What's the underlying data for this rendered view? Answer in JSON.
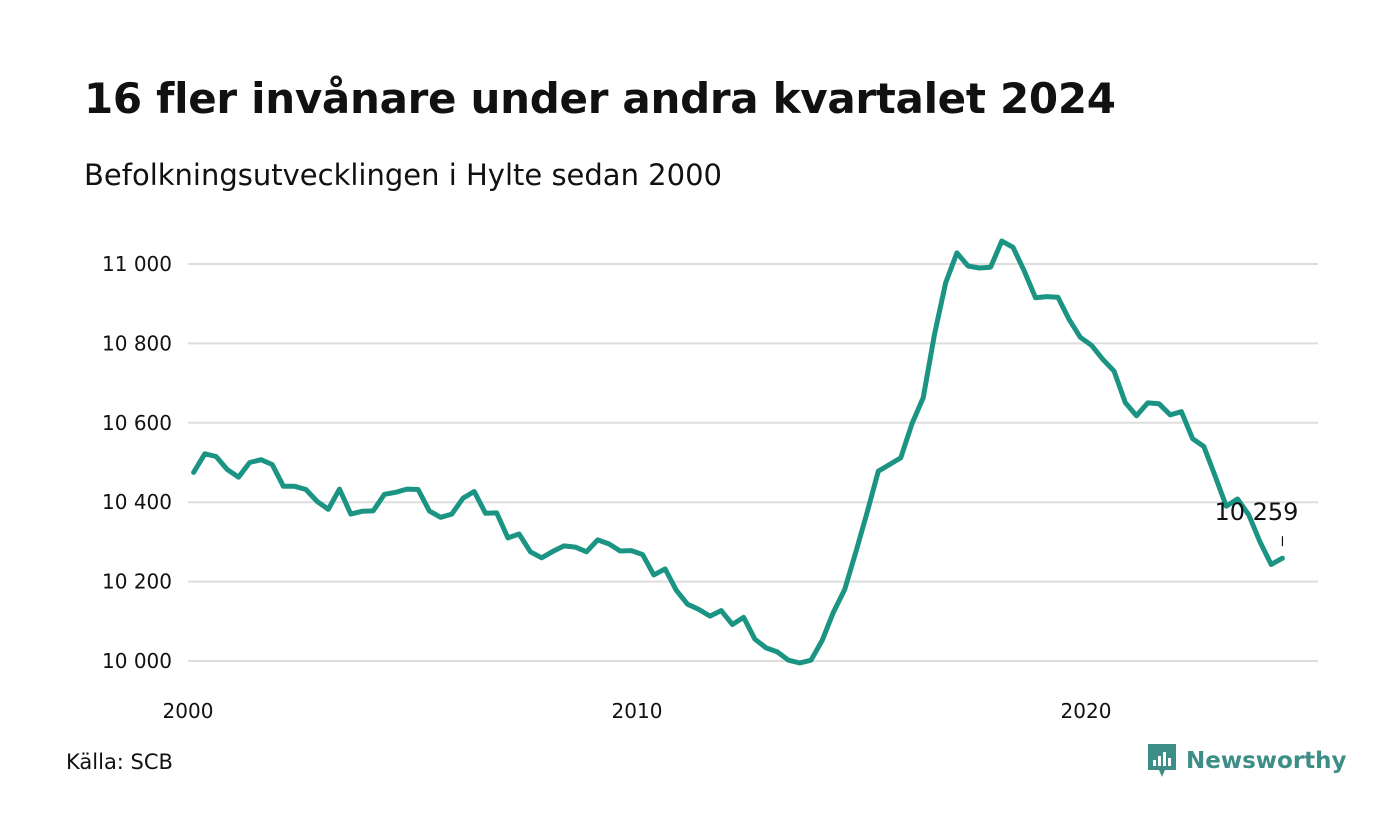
{
  "title": "16 fler invånare under andra kvartalet 2024",
  "subtitle": "Befolkningsutvecklingen i Hylte sedan 2000",
  "source": "Källa: SCB",
  "brand": {
    "name": "Newsworthy",
    "icon": "newsworthy-logo-icon",
    "color": "#3d8e86"
  },
  "colors": {
    "line": "#1b9484",
    "grid": "#dddddd",
    "text": "#111111"
  },
  "chart_data": {
    "type": "line",
    "title": "16 fler invånare under andra kvartalet 2024",
    "subtitle": "Befolkningsutvecklingen i Hylte sedan 2000",
    "xlabel": "",
    "ylabel": "",
    "xlim": [
      "2000-01",
      "2024-12"
    ],
    "ylim": [
      9990,
      11060
    ],
    "grid": "horizontal",
    "legend": "none",
    "x_ticks": [
      "2000",
      "2010",
      "2020"
    ],
    "y_ticks": [
      {
        "value": 10000,
        "label": "10 000"
      },
      {
        "value": 10200,
        "label": "10 200"
      },
      {
        "value": 10400,
        "label": "10 400"
      },
      {
        "value": 10600,
        "label": "10 600"
      },
      {
        "value": 10800,
        "label": "10 800"
      },
      {
        "value": 11000,
        "label": "11 000"
      }
    ],
    "annotation": {
      "x": "2024-Q2",
      "value": 10259,
      "label": "10 259"
    },
    "series": [
      {
        "x": [
          "2000-Q1",
          "2000-Q2",
          "2000-Q3",
          "2000-Q4",
          "2001-Q1",
          "2001-Q2",
          "2001-Q3",
          "2001-Q4",
          "2002-Q1",
          "2002-Q2",
          "2002-Q3",
          "2002-Q4",
          "2003-Q1",
          "2003-Q2",
          "2003-Q3",
          "2003-Q4",
          "2004-Q1",
          "2004-Q2",
          "2004-Q3",
          "2004-Q4",
          "2005-Q1",
          "2005-Q2",
          "2005-Q3",
          "2005-Q4",
          "2006-Q1",
          "2006-Q2",
          "2006-Q3",
          "2006-Q4",
          "2007-Q1",
          "2007-Q2",
          "2007-Q3",
          "2007-Q4",
          "2008-Q1",
          "2008-Q2",
          "2008-Q3",
          "2008-Q4",
          "2009-Q1",
          "2009-Q2",
          "2009-Q3",
          "2009-Q4",
          "2010-Q1",
          "2010-Q2",
          "2010-Q3",
          "2010-Q4",
          "2011-Q1",
          "2011-Q2",
          "2011-Q3",
          "2011-Q4",
          "2012-Q1",
          "2012-Q2",
          "2012-Q3",
          "2012-Q4",
          "2013-Q1",
          "2013-Q2",
          "2013-Q3",
          "2013-Q4",
          "2014-Q1",
          "2014-Q2",
          "2014-Q3",
          "2014-Q4",
          "2015-Q1",
          "2015-Q2",
          "2015-Q3",
          "2015-Q4",
          "2016-Q1",
          "2016-Q2",
          "2016-Q3",
          "2016-Q4",
          "2017-Q1",
          "2017-Q2",
          "2017-Q3",
          "2017-Q4",
          "2018-Q1",
          "2018-Q2",
          "2018-Q3",
          "2018-Q4",
          "2019-Q1",
          "2019-Q2",
          "2019-Q3",
          "2019-Q4",
          "2020-Q1",
          "2020-Q2",
          "2020-Q3",
          "2020-Q4",
          "2021-Q1",
          "2021-Q2",
          "2021-Q3",
          "2021-Q4",
          "2022-Q1",
          "2022-Q2",
          "2022-Q3",
          "2022-Q4",
          "2023-Q1",
          "2023-Q2",
          "2023-Q3",
          "2023-Q4",
          "2024-Q1",
          "2024-Q2"
        ],
        "values": [
          10475,
          10522,
          10515,
          10482,
          10463,
          10500,
          10507,
          10495,
          10440,
          10440,
          10432,
          10402,
          10382,
          10433,
          10370,
          10377,
          10378,
          10420,
          10425,
          10433,
          10432,
          10378,
          10362,
          10370,
          10410,
          10427,
          10372,
          10373,
          10310,
          10320,
          10275,
          10260,
          10276,
          10290,
          10287,
          10275,
          10305,
          10295,
          10277,
          10278,
          10268,
          10217,
          10232,
          10178,
          10143,
          10130,
          10113,
          10127,
          10092,
          10110,
          10055,
          10033,
          10023,
          10002,
          9995,
          10002,
          10052,
          10123,
          10180,
          10275,
          10374,
          10478,
          10495,
          10512,
          10598,
          10663,
          10823,
          10953,
          11028,
          10995,
          10990,
          10992,
          11058,
          11042,
          10982,
          10915,
          10918,
          10916,
          10860,
          10815,
          10795,
          10760,
          10730,
          10651,
          10618,
          10650,
          10648,
          10620,
          10628,
          10560,
          10540,
          10466,
          10390,
          10408,
          10368,
          10300,
          10243,
          10259
        ]
      }
    ]
  }
}
